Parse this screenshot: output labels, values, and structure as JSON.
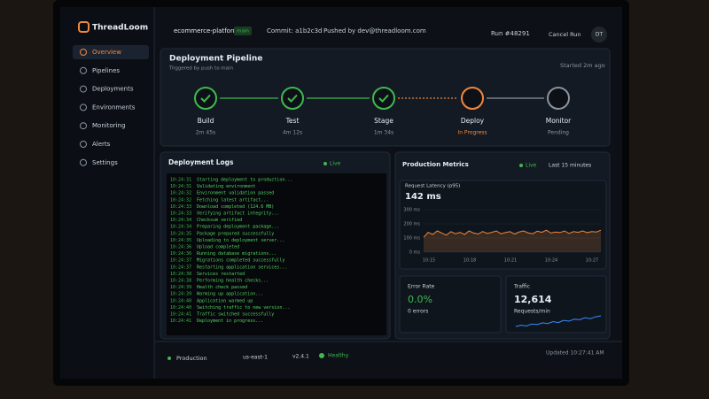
{
  "sidebar": {
    "brand": "ThreadLoom",
    "nav": [
      "Overview",
      "Pipelines",
      "Deployments",
      "Environments",
      "Monitoring",
      "Alerts",
      "Settings"
    ]
  },
  "header": {
    "project": "ecommerce-platform",
    "branch": "main",
    "commit": "Commit: a1b2c3d",
    "pushed_by": "Pushed by dev@threadloom.com",
    "run": "Run #48291",
    "cancel": "Cancel Run",
    "avatar": "DT"
  },
  "pipeline": {
    "title": "Deployment Pipeline",
    "subtitle": "Triggered by push to main",
    "started": "Started 2m ago",
    "stages": [
      {
        "name": "Build",
        "status": "2m 45s",
        "color": "#3fb950"
      },
      {
        "name": "Test",
        "status": "4m 12s",
        "color": "#3fb950"
      },
      {
        "name": "Stage",
        "status": "1m 34s",
        "color": "#3fb950"
      },
      {
        "name": "Deploy",
        "status": "In Progress",
        "color": "#f0883e"
      },
      {
        "name": "Monitor",
        "status": "Pending",
        "color": "#8b949e"
      }
    ]
  },
  "logs": {
    "title": "Deployment Logs",
    "live": "Live",
    "lines": [
      {
        "time": "10:24:31",
        "message": "Starting deployment to production..."
      },
      {
        "time": "10:24:31",
        "message": "Validating environment"
      },
      {
        "time": "10:24:32",
        "message": "Environment validation passed"
      },
      {
        "time": "10:24:32",
        "message": "Fetching latest artifact..."
      },
      {
        "time": "10:24:33",
        "message": "Download completed (124.6 MB)"
      },
      {
        "time": "10:24:33",
        "message": "Verifying artifact integrity..."
      },
      {
        "time": "10:24:34",
        "message": "Checksum verified"
      },
      {
        "time": "10:24:34",
        "message": "Preparing deployment package..."
      },
      {
        "time": "10:24:35",
        "message": "Package prepared successfully"
      },
      {
        "time": "10:24:35",
        "message": "Uploading to deployment server..."
      },
      {
        "time": "10:24:36",
        "message": "Upload completed"
      },
      {
        "time": "10:24:36",
        "message": "Running database migrations..."
      },
      {
        "time": "10:24:37",
        "message": "Migrations completed successfully"
      },
      {
        "time": "10:24:37",
        "message": "Restarting application services..."
      },
      {
        "time": "10:24:38",
        "message": "Services restarted"
      },
      {
        "time": "10:24:38",
        "message": "Performing health checks..."
      },
      {
        "time": "10:24:39",
        "message": "Health check passed"
      },
      {
        "time": "10:24:39",
        "message": "Warming up application..."
      },
      {
        "time": "10:24:40",
        "message": "Application warmed up"
      },
      {
        "time": "10:24:40",
        "message": "Switching traffic to new version..."
      },
      {
        "time": "10:24:41",
        "message": "Traffic switched successfully"
      },
      {
        "time": "10:24:41",
        "message": "Deployment in progress..."
      }
    ]
  },
  "metrics": {
    "title": "Production Metrics",
    "live": "Live",
    "range": "Last 15 minutes",
    "latency": {
      "label": "Request Latency (p95)",
      "value": "142 ms",
      "ylim": [
        0,
        300
      ],
      "yticks": [
        {
          "value": 0,
          "label": "0 ms"
        },
        {
          "value": 100,
          "label": "100 ms"
        },
        {
          "value": 200,
          "label": "200 ms"
        },
        {
          "value": 300,
          "label": "300 ms"
        }
      ],
      "xticks": [
        "10:15",
        "10:18",
        "10:21",
        "10:24",
        "10:27"
      ],
      "values": [
        105,
        140,
        125,
        150,
        135,
        120,
        145,
        130,
        140,
        125,
        150,
        135,
        128,
        146,
        132,
        140,
        150,
        130,
        138,
        145,
        128,
        142,
        150,
        136,
        130,
        148,
        140,
        155,
        135,
        142,
        138,
        150,
        132,
        145,
        140,
        150,
        138,
        145,
        142,
        155
      ]
    },
    "error_rate": {
      "label": "Error Rate",
      "value": "0.0%",
      "detail": "0 errors"
    },
    "traffic": {
      "label": "Traffic",
      "value": "12,614",
      "unit": "Requests/min",
      "values": [
        30,
        35,
        32,
        40,
        38,
        45,
        42,
        50,
        46,
        55,
        52,
        60,
        58,
        66,
        62,
        70,
        74
      ]
    }
  },
  "footer": {
    "environment": "Production",
    "region": "us-east-1",
    "version": "v2.4.1",
    "health": "Healthy",
    "updated": "Updated 10:27:41 AM"
  }
}
